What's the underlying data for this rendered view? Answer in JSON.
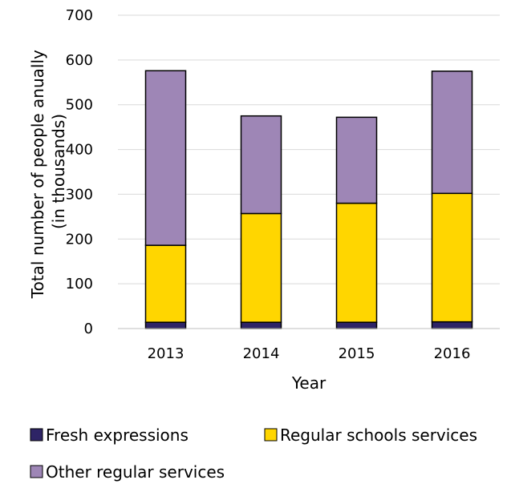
{
  "chart_data": {
    "type": "bar",
    "stacked": true,
    "categories": [
      "2013",
      "2014",
      "2015",
      "2016"
    ],
    "series": [
      {
        "name": "Fresh expressions",
        "values": [
          14,
          14,
          14,
          15
        ],
        "color": "#2E2466"
      },
      {
        "name": "Regular schools services",
        "values": [
          172,
          243,
          266,
          287
        ],
        "color": "#FFD600"
      },
      {
        "name": "Other regular services",
        "values": [
          390,
          218,
          192,
          273
        ],
        "color": "#9E86B6"
      }
    ],
    "title": "",
    "xlabel": "Year",
    "ylabel_lines": [
      "Total number of people anually",
      "(in thousands)"
    ],
    "ylim": [
      0,
      700
    ],
    "yticks": [
      0,
      100,
      200,
      300,
      400,
      500,
      600,
      700
    ],
    "grid": true,
    "legend_position": "bottom"
  }
}
